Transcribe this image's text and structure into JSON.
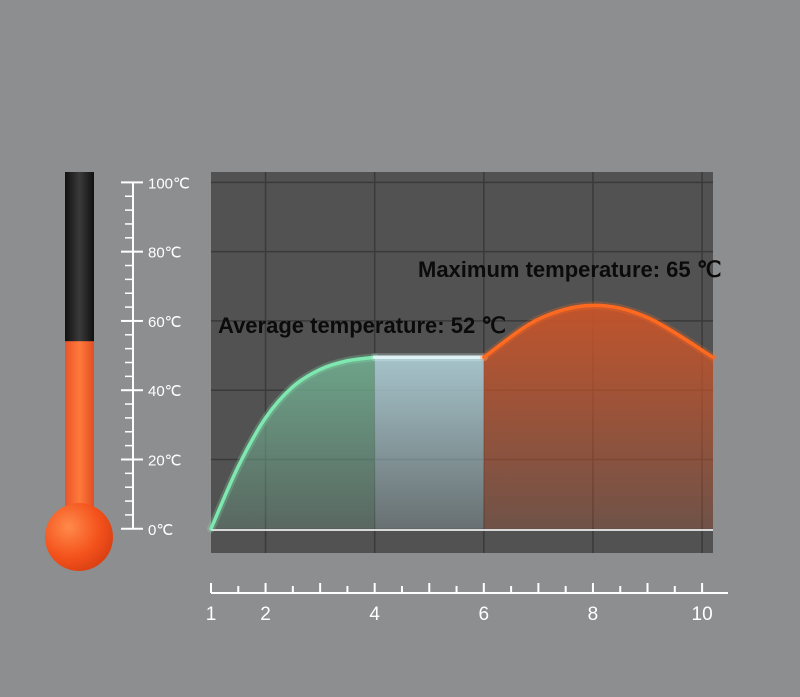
{
  "chart_data": {
    "type": "area",
    "x_ticks": [
      "1",
      "2",
      "4",
      "6",
      "8",
      "10"
    ],
    "y_ticks": [
      "0℃",
      "20℃",
      "40℃",
      "60℃",
      "80℃",
      "100℃"
    ],
    "xlim": [
      1,
      10.2
    ],
    "ylim": [
      -7,
      103
    ],
    "grid": true,
    "segments": [
      {
        "x": [
          1,
          1.5,
          2,
          2.5,
          3,
          3.5,
          4
        ],
        "y": [
          0,
          18,
          32,
          41,
          46,
          48.5,
          49.5
        ],
        "color": "#7ee8b0",
        "fill": "#6fa88c"
      },
      {
        "x": [
          4,
          6
        ],
        "y": [
          49.5,
          49.5
        ],
        "color": "#dff2f5",
        "fill": "#a9c9d0"
      },
      {
        "x": [
          6,
          7,
          8,
          9,
          10.2
        ],
        "y": [
          49.5,
          60.5,
          64.5,
          61,
          49.5
        ],
        "color": "#ff6a20",
        "fill": "#c7542a"
      }
    ],
    "annotations": [
      {
        "text": "Average temperature: 52 ℃",
        "value": 52
      },
      {
        "text": "Maximum temperature: 65 ℃",
        "value": 65
      }
    ],
    "thermometer_level": 0.52
  },
  "colors": {
    "background": "#8d8e90",
    "plot_background": "#525252",
    "grid": "#3a3a3a",
    "tick_text": "#ffffff",
    "mercury": "#ff6a20",
    "tube_empty": "#1e1e1e"
  }
}
